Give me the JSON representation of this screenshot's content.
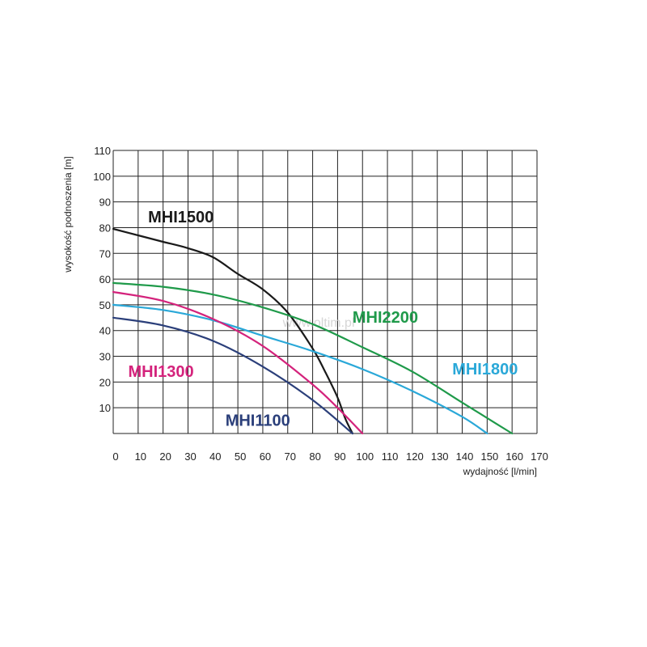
{
  "chart_data": {
    "type": "line",
    "xlabel": "wydajność [l/min]",
    "ylabel": "wysokość podnoszenia [m]",
    "xlim": [
      0,
      170
    ],
    "ylim": [
      0,
      110
    ],
    "x_ticks": [
      0,
      10,
      20,
      30,
      40,
      50,
      60,
      70,
      80,
      90,
      100,
      110,
      120,
      130,
      140,
      150,
      160,
      170
    ],
    "y_ticks": [
      10,
      20,
      30,
      40,
      50,
      60,
      70,
      80,
      90,
      100,
      110
    ],
    "grid": true,
    "watermark": "www.oltim.pl",
    "series": [
      {
        "name": "MHI1500",
        "color": "#1a1a1a",
        "x": [
          0,
          10,
          20,
          30,
          40,
          50,
          60,
          70,
          80,
          85,
          90,
          93,
          96
        ],
        "y": [
          79.5,
          77,
          74.5,
          72,
          68.5,
          62,
          56,
          47,
          33,
          24,
          14,
          6,
          0
        ]
      },
      {
        "name": "MHI2200",
        "color": "#1f9a4a",
        "x": [
          0,
          20,
          40,
          60,
          80,
          100,
          120,
          140,
          150,
          160
        ],
        "y": [
          58.5,
          57,
          54,
          49,
          42.5,
          33.5,
          24,
          12,
          6,
          0
        ]
      },
      {
        "name": "MHI1800",
        "color": "#2aa8d8",
        "x": [
          0,
          20,
          40,
          60,
          80,
          100,
          120,
          140,
          150
        ],
        "y": [
          50,
          48,
          44,
          38,
          32,
          25,
          16.5,
          6.5,
          0
        ]
      },
      {
        "name": "MHI1300",
        "color": "#d4237c",
        "x": [
          0,
          20,
          40,
          60,
          80,
          90,
          100
        ],
        "y": [
          55,
          51.5,
          44.5,
          34,
          19,
          10,
          0
        ]
      },
      {
        "name": "MHI1100",
        "color": "#2b3f7a",
        "x": [
          0,
          20,
          40,
          60,
          80,
          96
        ],
        "y": [
          45,
          42,
          36,
          26,
          13,
          0
        ]
      }
    ]
  }
}
